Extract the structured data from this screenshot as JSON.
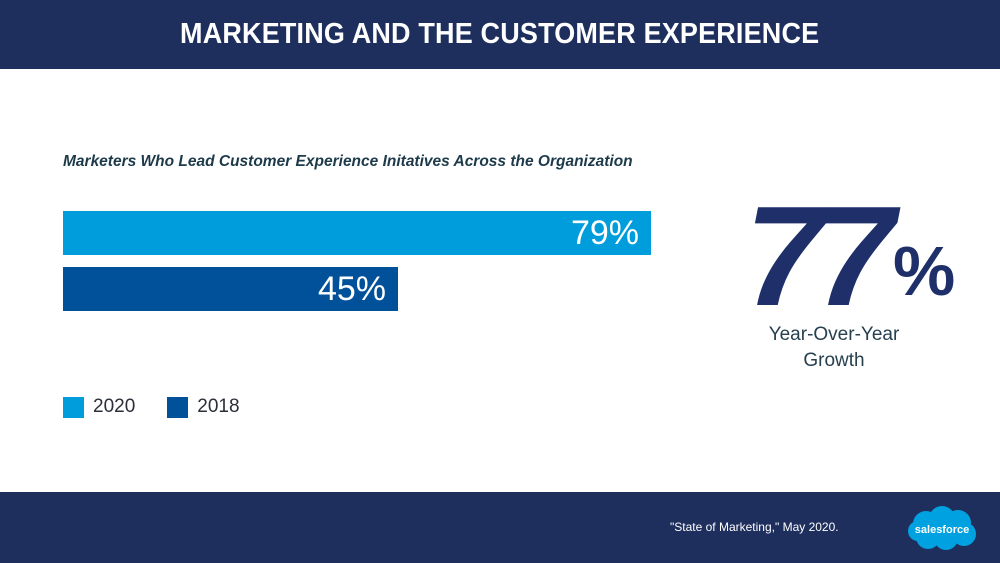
{
  "header": {
    "title": "MARKETING AND THE CUSTOMER EXPERIENCE"
  },
  "colors": {
    "header_bg": "#1e2f5e",
    "bar_2020": "#009ddc",
    "bar_2018": "#00519a",
    "stat": "#1e2f6a",
    "logo": "#00a1e0"
  },
  "chart_data": {
    "type": "bar",
    "orientation": "horizontal",
    "title": "Marketers Who Lead Customer Experience Initatives Across the Organization",
    "xlabel": "",
    "ylabel": "",
    "xlim": [
      0,
      100
    ],
    "grid": false,
    "legend_position": "bottom-left",
    "series": [
      {
        "name": "2020",
        "values": [
          79
        ],
        "label": "79%",
        "color": "#009ddc"
      },
      {
        "name": "2018",
        "values": [
          45
        ],
        "label": "45%",
        "color": "#00519a"
      }
    ]
  },
  "legend": [
    {
      "label": "2020"
    },
    {
      "label": "2018"
    }
  ],
  "stat": {
    "value": "77",
    "unit": "%",
    "caption_line1": "Year-Over-Year",
    "caption_line2": "Growth"
  },
  "footer": {
    "source": "\"State of Marketing,\" May 2020.",
    "logo_text": "salesforce"
  }
}
